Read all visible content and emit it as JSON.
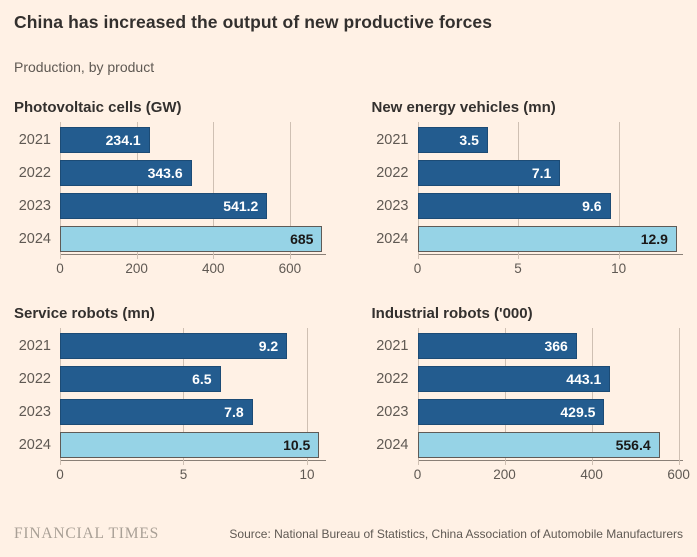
{
  "header": {
    "title": "China has increased the output of new productive forces",
    "subtitle": "Production, by product"
  },
  "colors": {
    "background": "#FFF1E5",
    "bar_dark": "#235C8F",
    "bar_light": "#96D3E6",
    "gridline": "#CFC0B3",
    "axis": "#8A8077",
    "title_text": "#33302E",
    "muted_text": "#5F5953",
    "value_on_dark": "#FFFFFF",
    "value_on_light": "#1A1817",
    "ft_logo": "#A9A096"
  },
  "chart_data": [
    {
      "type": "bar",
      "orientation": "horizontal",
      "title": "Photovoltaic cells (GW)",
      "categories": [
        "2021",
        "2022",
        "2023",
        "2024"
      ],
      "values": [
        234.1,
        343.6,
        541.2,
        685
      ],
      "value_labels": [
        "234.1",
        "343.6",
        "541.2",
        "685"
      ],
      "ticks": [
        0,
        200,
        400,
        600
      ],
      "tick_labels": [
        "0",
        "200",
        "400",
        "600"
      ],
      "xlim": [
        0,
        693
      ],
      "highlight_last": true,
      "grid": true,
      "legend": "none"
    },
    {
      "type": "bar",
      "orientation": "horizontal",
      "title": "New energy vehicles (mn)",
      "categories": [
        "2021",
        "2022",
        "2023",
        "2024"
      ],
      "values": [
        3.5,
        7.1,
        9.6,
        12.9
      ],
      "value_labels": [
        "3.5",
        "7.1",
        "9.6",
        "12.9"
      ],
      "ticks": [
        0,
        5,
        10
      ],
      "tick_labels": [
        "0",
        "5",
        "10"
      ],
      "xlim": [
        0,
        13.2
      ],
      "highlight_last": true,
      "grid": true,
      "legend": "none"
    },
    {
      "type": "bar",
      "orientation": "horizontal",
      "title": "Service robots (mn)",
      "categories": [
        "2021",
        "2022",
        "2023",
        "2024"
      ],
      "values": [
        9.2,
        6.5,
        7.8,
        10.5
      ],
      "value_labels": [
        "9.2",
        "6.5",
        "7.8",
        "10.5"
      ],
      "ticks": [
        0,
        5,
        10
      ],
      "tick_labels": [
        "0",
        "5",
        "10"
      ],
      "xlim": [
        0,
        10.75
      ],
      "highlight_last": true,
      "grid": true,
      "legend": "none"
    },
    {
      "type": "bar",
      "orientation": "horizontal",
      "title": "Industrial robots ('000)",
      "categories": [
        "2021",
        "2022",
        "2023",
        "2024"
      ],
      "values": [
        366,
        443.1,
        429.5,
        556.4
      ],
      "value_labels": [
        "366",
        "443.1",
        "429.5",
        "556.4"
      ],
      "ticks": [
        0,
        200,
        400,
        600
      ],
      "tick_labels": [
        "0",
        "200",
        "400",
        "600"
      ],
      "xlim": [
        0,
        610
      ],
      "highlight_last": true,
      "grid": true,
      "legend": "none"
    }
  ],
  "footer": {
    "logo": "FINANCIAL TIMES",
    "source": "Source: National Bureau of Statistics, China Association of Automobile Manufacturers"
  }
}
